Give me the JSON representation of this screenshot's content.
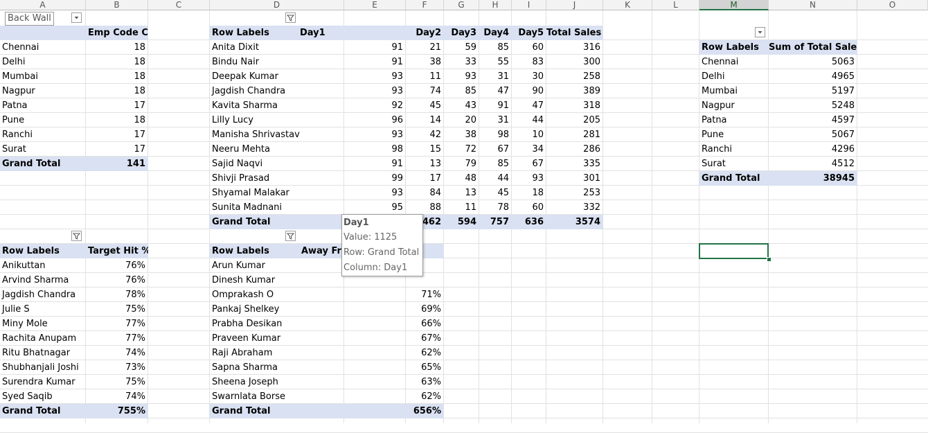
{
  "columns": [
    "A",
    "B",
    "C",
    "D",
    "E",
    "F",
    "G",
    "H",
    "I",
    "J",
    "K",
    "L",
    "M",
    "N",
    "O"
  ],
  "selected_column": "M",
  "name_tooltip": "Back Wall",
  "pivot_city_emp": {
    "header": [
      "",
      "Emp Code Count"
    ],
    "rows": [
      [
        "Chennai",
        "18"
      ],
      [
        "Delhi",
        "18"
      ],
      [
        "Mumbai",
        "18"
      ],
      [
        "Nagpur",
        "18"
      ],
      [
        "Patna",
        "17"
      ],
      [
        "Pune",
        "18"
      ],
      [
        "Ranchi",
        "17"
      ],
      [
        "Surat",
        "17"
      ]
    ],
    "total": [
      "Grand Total",
      "141"
    ]
  },
  "pivot_sales": {
    "header": [
      "Row Labels",
      "Day1",
      "Day2",
      "Day3",
      "Day4",
      "Day5",
      "Total Sales"
    ],
    "rows": [
      [
        "Anita Dixit",
        "91",
        "21",
        "59",
        "85",
        "60",
        "316"
      ],
      [
        "Bindu Nair",
        "91",
        "38",
        "33",
        "55",
        "83",
        "300"
      ],
      [
        "Deepak Kumar",
        "93",
        "11",
        "93",
        "31",
        "30",
        "258"
      ],
      [
        "Jagdish Chandra",
        "93",
        "74",
        "85",
        "47",
        "90",
        "389"
      ],
      [
        "Kavita Sharma",
        "92",
        "45",
        "43",
        "91",
        "47",
        "318"
      ],
      [
        "Lilly Lucy",
        "96",
        "14",
        "20",
        "31",
        "44",
        "205"
      ],
      [
        "Manisha Shrivastav",
        "93",
        "42",
        "38",
        "98",
        "10",
        "281"
      ],
      [
        "Neeru Mehta",
        "98",
        "15",
        "72",
        "67",
        "34",
        "286"
      ],
      [
        "Sajid Naqvi",
        "91",
        "13",
        "79",
        "85",
        "67",
        "335"
      ],
      [
        "Shivji Prasad",
        "99",
        "17",
        "48",
        "44",
        "93",
        "301"
      ],
      [
        "Shyamal Malakar",
        "93",
        "84",
        "13",
        "45",
        "18",
        "253"
      ],
      [
        "Sunita Madnani",
        "95",
        "88",
        "11",
        "78",
        "60",
        "332"
      ]
    ],
    "total": [
      "Grand Total",
      "1125",
      "462",
      "594",
      "757",
      "636",
      "3574"
    ]
  },
  "pivot_city_sales": {
    "header": [
      "Row Labels",
      "Sum of Total Sales"
    ],
    "rows": [
      [
        "Chennai",
        "5063"
      ],
      [
        "Delhi",
        "4965"
      ],
      [
        "Mumbai",
        "5197"
      ],
      [
        "Nagpur",
        "5248"
      ],
      [
        "Patna",
        "4597"
      ],
      [
        "Pune",
        "5067"
      ],
      [
        "Ranchi",
        "4296"
      ],
      [
        "Surat",
        "4512"
      ]
    ],
    "total": [
      "Grand Total",
      "38945"
    ]
  },
  "pivot_target": {
    "header": [
      "Row Labels",
      "Target Hit %"
    ],
    "rows": [
      [
        "Anikuttan",
        "76%"
      ],
      [
        "Arvind Sharma",
        "76%"
      ],
      [
        "Jagdish Chandra",
        "78%"
      ],
      [
        "Julie S",
        "75%"
      ],
      [
        "Miny Mole",
        "77%"
      ],
      [
        "Rachita Anupam",
        "77%"
      ],
      [
        "Ritu Bhatnagar",
        "74%"
      ],
      [
        "Shubhanjali Joshi",
        "73%"
      ],
      [
        "Surendra Kumar",
        "75%"
      ],
      [
        "Syed Saqib",
        "74%"
      ]
    ],
    "total": [
      "Grand Total",
      "755%"
    ]
  },
  "pivot_away": {
    "header": [
      "Row Labels",
      "Away Fr"
    ],
    "rows": [
      [
        "Arun Kumar",
        ""
      ],
      [
        "Dinesh Kumar",
        ""
      ],
      [
        "Omprakash O",
        "71%"
      ],
      [
        "Pankaj Shelkey",
        "69%"
      ],
      [
        "Prabha Desikan",
        "66%"
      ],
      [
        "Praveen Kumar",
        "67%"
      ],
      [
        "Raji Abraham",
        "62%"
      ],
      [
        "Sapna Sharma",
        "65%"
      ],
      [
        "Sheena Joseph",
        "63%"
      ],
      [
        "Swarnlata Borse",
        "62%"
      ]
    ],
    "total": [
      "Grand Total",
      "656%"
    ]
  },
  "value_tooltip": {
    "title": "Day1",
    "lines": [
      "Value: 1125",
      "Row: Grand Total",
      "Column: Day1"
    ]
  },
  "colors": {
    "header_band": "#d9e1f2",
    "band_border": "#8ea9db",
    "accent": "#217346",
    "gridline": "#e1e1e1"
  }
}
